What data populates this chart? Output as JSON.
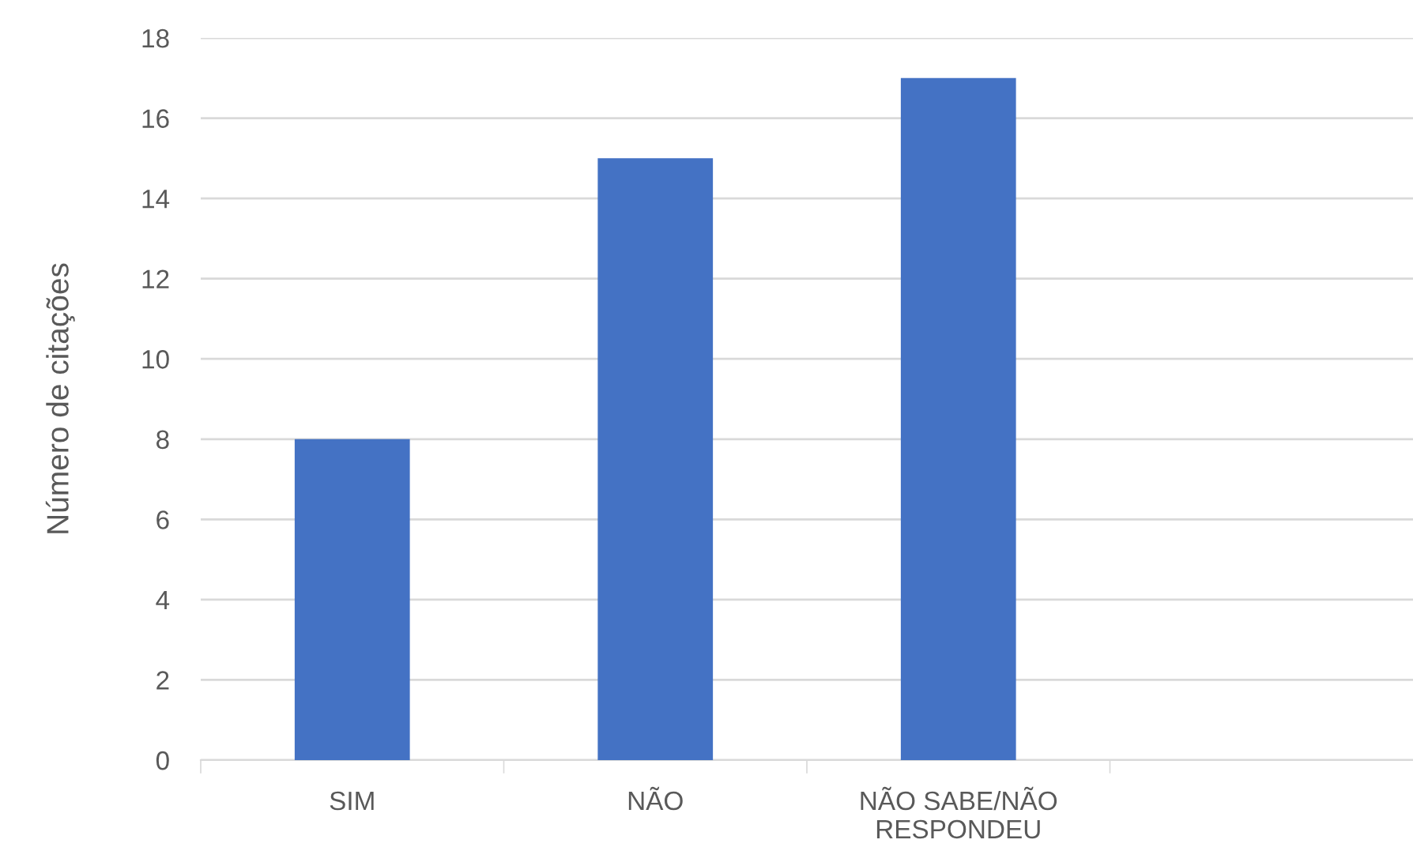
{
  "chart_data": {
    "type": "bar",
    "ylabel": "Número de citações",
    "categories": [
      "SIM",
      "NÃO",
      "NÃO SABE/NÃO\nRESPONDEU",
      null
    ],
    "values": [
      8,
      15,
      17,
      null
    ],
    "color": "#4472c4",
    "ylim": [
      0,
      18
    ],
    "yticks": [
      0,
      2,
      4,
      6,
      8,
      10,
      12,
      14,
      16,
      18
    ],
    "grid": "y",
    "legend": false
  }
}
